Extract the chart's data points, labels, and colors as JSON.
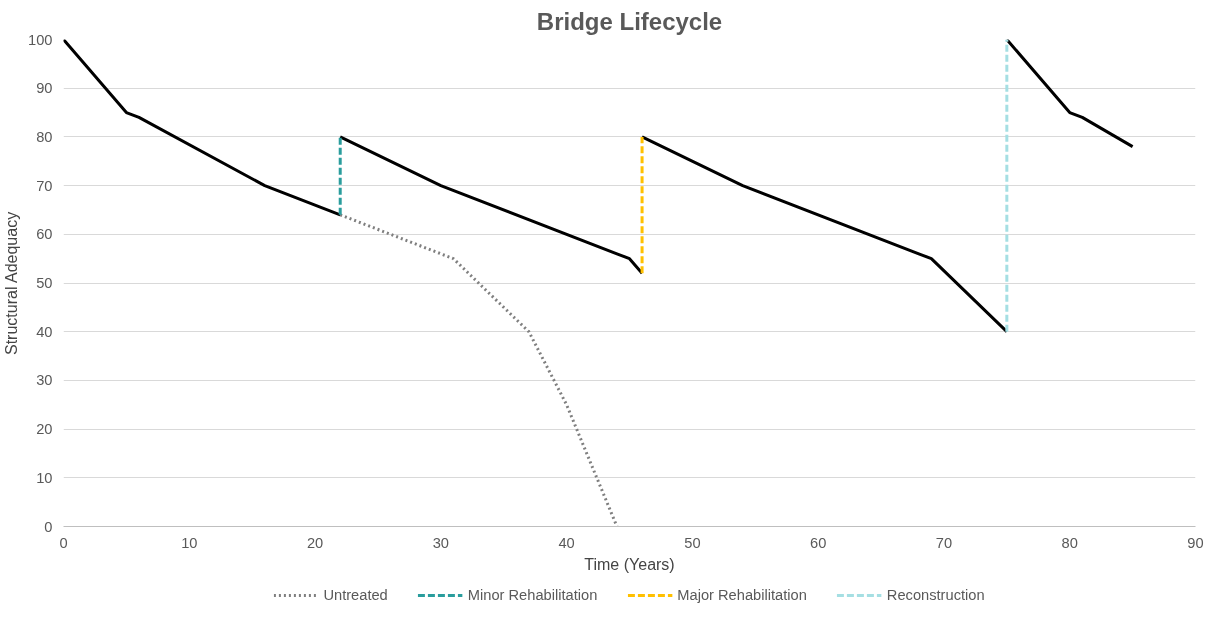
{
  "chart_data": {
    "type": "line",
    "title": "Bridge Lifecycle",
    "xlabel": "Time (Years)",
    "ylabel": "Structural Adequacy",
    "xlim": [
      0,
      90
    ],
    "xticks": [
      0,
      10,
      20,
      30,
      40,
      50,
      60,
      70,
      80,
      90
    ],
    "ylim": [
      0,
      100
    ],
    "yticks": [
      0,
      10,
      20,
      30,
      40,
      50,
      60,
      70,
      80,
      90,
      100
    ],
    "grid": "y",
    "legend": "bottom",
    "marker": "none",
    "series": [
      {
        "color": "#000000",
        "line_style": "solid",
        "x": [
          0,
          5,
          6,
          16,
          22
        ],
        "values": [
          100,
          85,
          84,
          70,
          64
        ]
      },
      {
        "color": "#000000",
        "line_style": "solid",
        "x": [
          22,
          30,
          44,
          45,
          46
        ],
        "values": [
          80,
          70,
          56,
          55,
          52
        ]
      },
      {
        "color": "#000000",
        "line_style": "solid",
        "x": [
          46,
          54,
          68,
          69,
          75
        ],
        "values": [
          80,
          70,
          56,
          55,
          40
        ]
      },
      {
        "color": "#000000",
        "line_style": "solid",
        "x": [
          75,
          80,
          81,
          85
        ],
        "values": [
          100,
          85,
          84,
          78
        ]
      },
      {
        "name": "Untreated",
        "color": "#7f7f7f",
        "line_style": "dotted",
        "x": [
          22,
          31,
          37,
          40,
          44
        ],
        "values": [
          64,
          55,
          40,
          25,
          0
        ]
      },
      {
        "name": "Minor Rehabilitation",
        "color": "#2a9d9d",
        "line_style": "dashed",
        "x": [
          22,
          22
        ],
        "values": [
          64,
          80
        ]
      },
      {
        "name": "Major Rehabilitation",
        "color": "#ffc000",
        "line_style": "dashed",
        "x": [
          46,
          46
        ],
        "values": [
          52,
          80
        ]
      },
      {
        "name": "Reconstruction",
        "color": "#a5dfe3",
        "line_style": "dashed",
        "x": [
          75,
          75
        ],
        "values": [
          40,
          100
        ]
      }
    ]
  }
}
